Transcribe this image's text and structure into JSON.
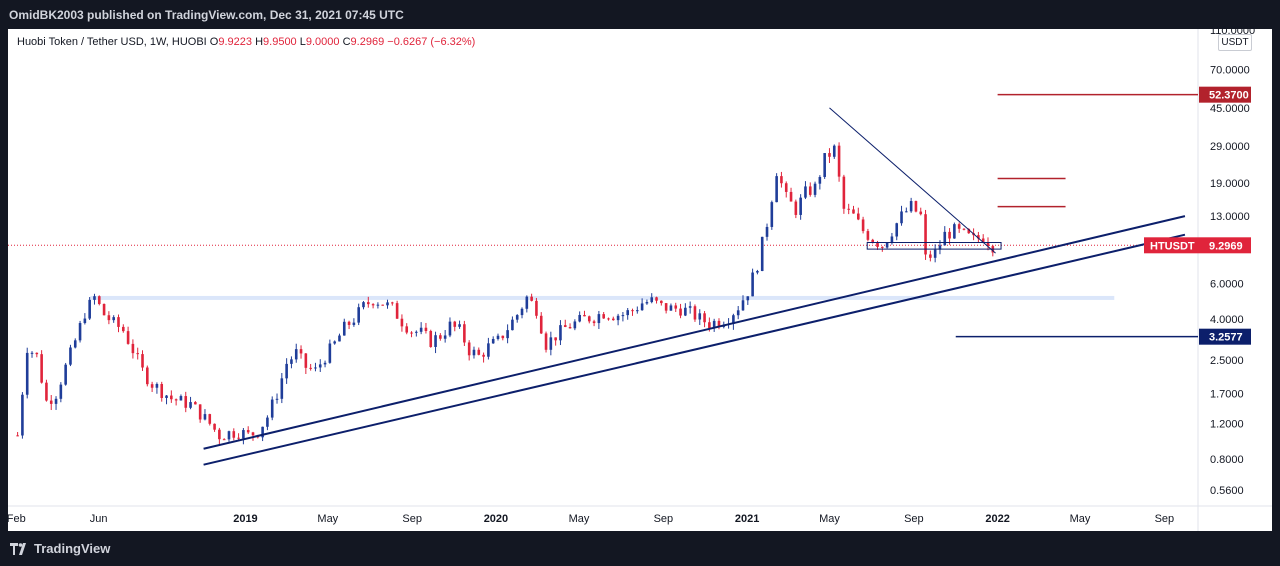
{
  "publisher": "OmidBK2003 published on TradingView.com, Dec 31, 2021 07:45 UTC",
  "brand": "TradingView",
  "legend": {
    "symbol": "Huobi Token / Tether USD, 1W, HUOBI",
    "o_key": "O",
    "o": "9.9223",
    "h_key": "H",
    "h": "9.9500",
    "l_key": "L",
    "l": "9.0000",
    "c_key": "C",
    "c": "9.2969",
    "change": "−0.6267 (−6.32%)"
  },
  "currency": "USDT",
  "colors": {
    "up": "#1f3d99",
    "down": "#e0243b",
    "trendline": "#0c1f6b",
    "resistance": "#b2222c",
    "support_zone": "#dbe6fa"
  },
  "chart_data": {
    "type": "candlestick",
    "scale": "log",
    "ylim": [
      0.5,
      110
    ],
    "y_ticks": [
      "110.0000",
      "70.0000",
      "45.0000",
      "29.0000",
      "19.0000",
      "13.0000",
      "6.0000",
      "4.0000",
      "2.5000",
      "1.7000",
      "1.2000",
      "0.8000",
      "0.5600"
    ],
    "y_tick_values": [
      110,
      70,
      45,
      29,
      19,
      13,
      6,
      4,
      2.5,
      1.7,
      1.2,
      0.8,
      0.56
    ],
    "x_ticks": [
      {
        "label": "Feb",
        "date": "2018-02-01",
        "bold": false
      },
      {
        "label": "Jun",
        "date": "2018-06-01",
        "bold": false
      },
      {
        "label": "2019",
        "date": "2019-01-01",
        "bold": true
      },
      {
        "label": "May",
        "date": "2019-05-01",
        "bold": false
      },
      {
        "label": "Sep",
        "date": "2019-09-01",
        "bold": false
      },
      {
        "label": "2020",
        "date": "2020-01-01",
        "bold": true
      },
      {
        "label": "May",
        "date": "2020-05-01",
        "bold": false
      },
      {
        "label": "Sep",
        "date": "2020-09-01",
        "bold": false
      },
      {
        "label": "2021",
        "date": "2021-01-01",
        "bold": true
      },
      {
        "label": "May",
        "date": "2021-05-01",
        "bold": false
      },
      {
        "label": "Sep",
        "date": "2021-09-01",
        "bold": false
      },
      {
        "label": "2022",
        "date": "2022-01-01",
        "bold": true
      },
      {
        "label": "May",
        "date": "2022-05-01",
        "bold": false
      },
      {
        "label": "Sep",
        "date": "2022-09-01",
        "bold": false
      }
    ],
    "series": [
      {
        "name": "HTUSDT",
        "last_value": "9.2969",
        "close_path": [
          [
            "2018-02-03",
            1.05
          ],
          [
            "2018-02-17",
            2.9
          ],
          [
            "2018-03-03",
            2.6
          ],
          [
            "2018-03-17",
            1.55
          ],
          [
            "2018-03-31",
            1.7
          ],
          [
            "2018-04-14",
            2.3
          ],
          [
            "2018-04-28",
            3.1
          ],
          [
            "2018-05-12",
            4.3
          ],
          [
            "2018-05-26",
            5.1
          ],
          [
            "2018-06-09",
            4.2
          ],
          [
            "2018-06-23",
            3.8
          ],
          [
            "2018-07-07",
            3.5
          ],
          [
            "2018-07-21",
            2.8
          ],
          [
            "2018-08-04",
            2.2
          ],
          [
            "2018-08-18",
            1.9
          ],
          [
            "2018-09-01",
            1.75
          ],
          [
            "2018-09-15",
            1.6
          ],
          [
            "2018-09-29",
            1.55
          ],
          [
            "2018-10-13",
            1.5
          ],
          [
            "2018-10-27",
            1.35
          ],
          [
            "2018-11-10",
            1.2
          ],
          [
            "2018-11-24",
            1.05
          ],
          [
            "2018-12-08",
            1.08
          ],
          [
            "2018-12-22",
            1.1
          ],
          [
            "2019-01-05",
            1.05
          ],
          [
            "2019-01-19",
            1.1
          ],
          [
            "2019-02-02",
            1.3
          ],
          [
            "2019-02-16",
            1.7
          ],
          [
            "2019-03-02",
            2.4
          ],
          [
            "2019-03-16",
            2.7
          ],
          [
            "2019-03-30",
            2.3
          ],
          [
            "2019-04-13",
            2.2
          ],
          [
            "2019-04-27",
            2.6
          ],
          [
            "2019-05-11",
            3.0
          ],
          [
            "2019-05-25",
            3.6
          ],
          [
            "2019-06-08",
            4.0
          ],
          [
            "2019-06-22",
            4.6
          ],
          [
            "2019-07-06",
            5.0
          ],
          [
            "2019-07-20",
            4.8
          ],
          [
            "2019-08-03",
            4.5
          ],
          [
            "2019-08-17",
            3.9
          ],
          [
            "2019-08-31",
            3.5
          ],
          [
            "2019-09-14",
            3.4
          ],
          [
            "2019-09-28",
            3.1
          ],
          [
            "2019-10-12",
            3.3
          ],
          [
            "2019-10-26",
            3.7
          ],
          [
            "2019-11-09",
            3.5
          ],
          [
            "2019-11-23",
            2.8
          ],
          [
            "2019-12-07",
            2.6
          ],
          [
            "2019-12-21",
            2.9
          ],
          [
            "2020-01-04",
            3.1
          ],
          [
            "2020-01-18",
            3.6
          ],
          [
            "2020-02-01",
            4.2
          ],
          [
            "2020-02-15",
            5.1
          ],
          [
            "2020-02-29",
            4.5
          ],
          [
            "2020-03-14",
            3.0
          ],
          [
            "2020-03-28",
            3.3
          ],
          [
            "2020-04-11",
            3.6
          ],
          [
            "2020-04-25",
            3.8
          ],
          [
            "2020-05-09",
            4.0
          ],
          [
            "2020-05-23",
            4.1
          ],
          [
            "2020-06-06",
            4.3
          ],
          [
            "2020-06-20",
            4.2
          ],
          [
            "2020-07-04",
            4.2
          ],
          [
            "2020-07-18",
            4.4
          ],
          [
            "2020-08-01",
            4.8
          ],
          [
            "2020-08-15",
            4.9
          ],
          [
            "2020-08-29",
            4.6
          ],
          [
            "2020-09-12",
            4.5
          ],
          [
            "2020-09-26",
            4.5
          ],
          [
            "2020-10-10",
            4.3
          ],
          [
            "2020-10-24",
            4.0
          ],
          [
            "2020-11-07",
            3.8
          ],
          [
            "2020-11-21",
            3.9
          ],
          [
            "2020-12-05",
            4.1
          ],
          [
            "2020-12-19",
            4.6
          ],
          [
            "2021-01-02",
            5.5
          ],
          [
            "2021-01-16",
            7.5
          ],
          [
            "2021-01-30",
            12.0
          ],
          [
            "2021-02-13",
            22.0
          ],
          [
            "2021-02-27",
            16.0
          ],
          [
            "2021-03-13",
            14.0
          ],
          [
            "2021-03-27",
            17.0
          ],
          [
            "2021-04-10",
            18.0
          ],
          [
            "2021-04-24",
            25.0
          ],
          [
            "2021-05-08",
            28.0
          ],
          [
            "2021-05-22",
            14.0
          ],
          [
            "2021-06-05",
            13.0
          ],
          [
            "2021-06-19",
            11.0
          ],
          [
            "2021-07-03",
            10.0
          ],
          [
            "2021-07-17",
            9.3
          ],
          [
            "2021-07-31",
            11.0
          ],
          [
            "2021-08-14",
            13.0
          ],
          [
            "2021-08-28",
            14.5
          ],
          [
            "2021-09-11",
            13.0
          ],
          [
            "2021-09-18",
            8.0
          ],
          [
            "2021-10-02",
            8.5
          ],
          [
            "2021-10-16",
            10.5
          ],
          [
            "2021-10-30",
            11.0
          ],
          [
            "2021-11-13",
            10.5
          ],
          [
            "2021-11-27",
            9.9
          ],
          [
            "2021-12-11",
            10.3
          ],
          [
            "2021-12-25",
            9.3
          ]
        ]
      }
    ],
    "price_labels": [
      {
        "value": 52.37,
        "text": "52.3700"
      },
      {
        "value": 3.2577,
        "text": "3.2577"
      }
    ],
    "drawings": {
      "resistance_levels": [
        52.37,
        20.0,
        14.5
      ],
      "support_level": 3.2577,
      "support_zone": [
        5.0,
        5.2
      ],
      "consolidation_box": [
        8.9,
        9.6
      ],
      "descending_trendline": [
        [
          "2021-05-01",
          45.0
        ],
        [
          "2021-12-29",
          8.5
        ]
      ],
      "ascending_trendlines": [
        [
          [
            "2018-11-01",
            0.9
          ],
          [
            "2022-10-01",
            13.0
          ]
        ],
        [
          [
            "2018-11-01",
            0.75
          ],
          [
            "2022-10-01",
            10.5
          ]
        ]
      ]
    },
    "grid": false,
    "legend_position": "top-left"
  }
}
